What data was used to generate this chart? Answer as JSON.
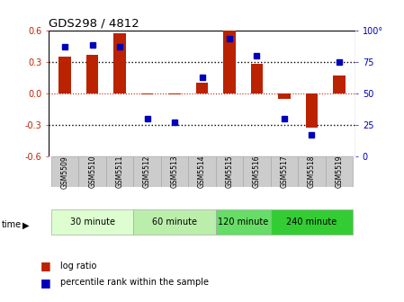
{
  "title": "GDS298 / 4812",
  "samples": [
    "GSM5509",
    "GSM5510",
    "GSM5511",
    "GSM5512",
    "GSM5513",
    "GSM5514",
    "GSM5515",
    "GSM5516",
    "GSM5517",
    "GSM5518",
    "GSM5519"
  ],
  "log_ratio": [
    0.35,
    0.37,
    0.57,
    -0.01,
    -0.01,
    0.1,
    0.6,
    0.28,
    -0.05,
    -0.33,
    0.17
  ],
  "percentile": [
    87,
    88,
    87,
    30,
    27,
    63,
    93,
    80,
    30,
    17,
    75
  ],
  "ylim": [
    -0.6,
    0.6
  ],
  "yticks_left": [
    -0.6,
    -0.3,
    0.0,
    0.3,
    0.6
  ],
  "yticks_right": [
    0,
    25,
    50,
    75,
    100
  ],
  "hlines_black": [
    0.3,
    -0.3
  ],
  "hline_red": 0.0,
  "bar_color": "#bb2200",
  "dot_color": "#0000bb",
  "groups": [
    {
      "label": "30 minute",
      "start": 0,
      "end": 3,
      "color": "#ddffd0"
    },
    {
      "label": "60 minute",
      "start": 3,
      "end": 6,
      "color": "#bbeeaa"
    },
    {
      "label": "120 minute",
      "start": 6,
      "end": 8,
      "color": "#66dd66"
    },
    {
      "label": "240 minute",
      "start": 8,
      "end": 11,
      "color": "#33cc33"
    }
  ],
  "time_label": "time",
  "legend_bar_label": "log ratio",
  "legend_dot_label": "percentile rank within the sample",
  "bg": "#ffffff",
  "label_bg": "#cccccc",
  "bar_width": 0.45
}
